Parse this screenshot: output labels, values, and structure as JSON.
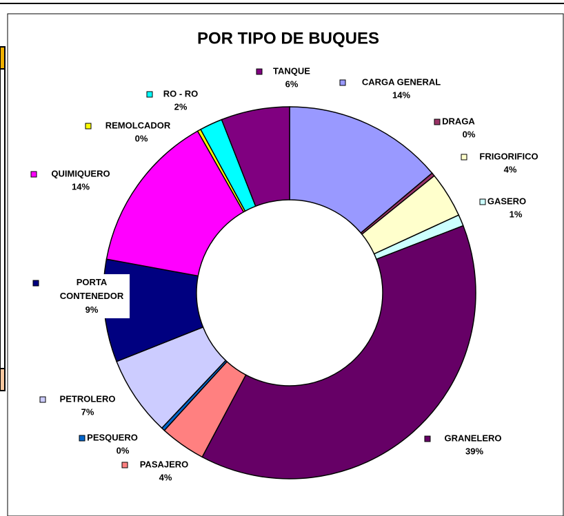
{
  "chart_data": {
    "type": "donut",
    "title": "POR TIPO DE BUQUES",
    "categories": [
      "CARGA GENERAL",
      "DRAGA",
      "FRIGORIFICO",
      "GASERO",
      "GRANELERO",
      "PASAJERO",
      "PESQUERO",
      "PETROLERO",
      "PORTA CONTENEDOR",
      "QUIMIQUERO",
      "REMOLCADOR",
      "RO - RO",
      "TANQUE"
    ],
    "values": [
      14,
      0.3,
      4,
      1,
      39,
      4,
      0.3,
      7,
      9,
      14,
      0.3,
      2,
      6
    ],
    "value_labels": [
      "14%",
      "0%",
      "4%",
      "1%",
      "39%",
      "4%",
      "0%",
      "7%",
      "9%",
      "14%",
      "0%",
      "2%",
      "6%"
    ],
    "colors": [
      "#9999ff",
      "#993366",
      "#ffffcc",
      "#ccffff",
      "#660066",
      "#ff8080",
      "#0066cc",
      "#ccccff",
      "#000080",
      "#ff00ff",
      "#ffff00",
      "#00ffff",
      "#800080"
    ]
  }
}
